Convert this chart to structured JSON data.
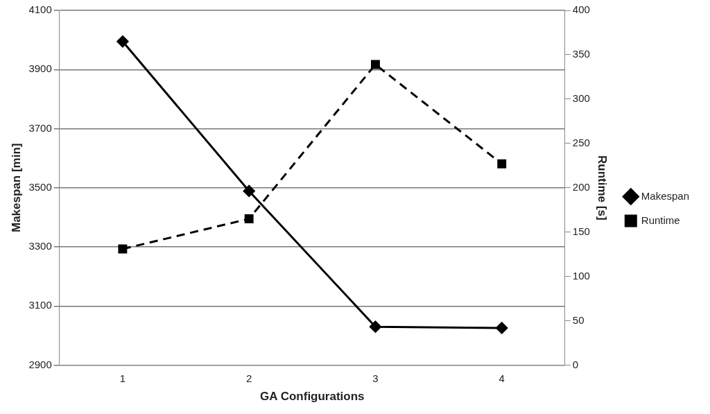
{
  "chart_data": {
    "type": "line",
    "xlabel": "GA Configurations",
    "ylabel": "Makespan [min]",
    "y2label": "Runtime [s]",
    "categories": [
      "1",
      "2",
      "3",
      "4"
    ],
    "series": [
      {
        "name": "Makespan",
        "color": "#000000",
        "values": [
          3995,
          3489,
          3030,
          3026
        ],
        "marker": "diamond",
        "line_style": "solid"
      },
      {
        "name": "Runtime",
        "color": "#000000",
        "values": [
          131,
          165,
          339,
          227
        ],
        "axis": "y2",
        "marker": "square",
        "line_style": "dashed"
      }
    ],
    "ylim": [
      2900,
      4100
    ],
    "yticks": [
      2900,
      3100,
      3300,
      3500,
      3700,
      3900,
      4100
    ],
    "y2lim": [
      0,
      400
    ],
    "y2ticks": [
      0,
      50,
      100,
      150,
      200,
      250,
      300,
      350,
      400
    ],
    "grid": "y",
    "legend": "right"
  }
}
